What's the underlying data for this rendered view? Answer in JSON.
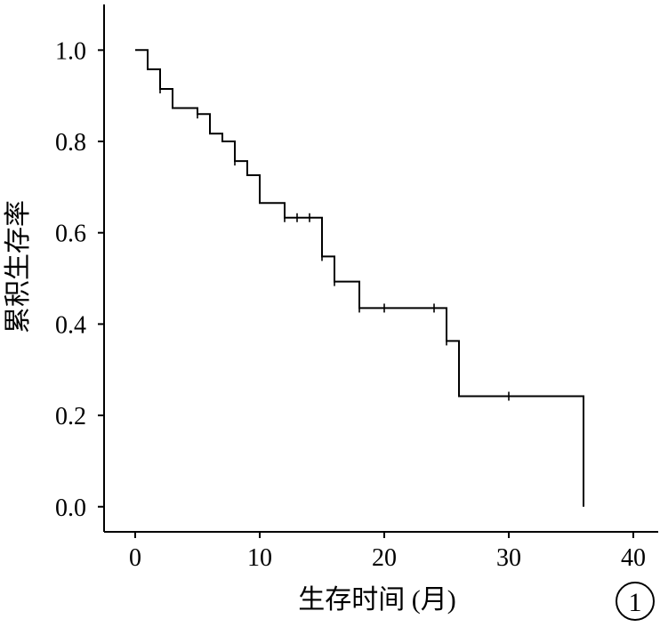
{
  "chart_data": {
    "type": "line",
    "subtype": "kaplan-meier-step",
    "xlabel": "生存时间 (月)",
    "ylabel": "累积生存率",
    "xlim": [
      -2.5,
      42
    ],
    "ylim": [
      -0.055,
      1.1
    ],
    "x_ticks": [
      0,
      10,
      20,
      30,
      40
    ],
    "x_tick_labels": [
      "0",
      "10",
      "20",
      "30",
      "40"
    ],
    "y_ticks": [
      0.0,
      0.2,
      0.4,
      0.6,
      0.8,
      1.0
    ],
    "y_tick_labels": [
      "0.0",
      "0.2",
      "0.4",
      "0.6",
      "0.8",
      "1.0"
    ],
    "grid": false,
    "panel_label": "1",
    "series": [
      {
        "step_points": [
          [
            0,
            1.0
          ],
          [
            1,
            1.0
          ],
          [
            1,
            0.958
          ],
          [
            2,
            0.958
          ],
          [
            2,
            0.915
          ],
          [
            3,
            0.915
          ],
          [
            3,
            0.873
          ],
          [
            5,
            0.873
          ],
          [
            5,
            0.86
          ],
          [
            6,
            0.86
          ],
          [
            6,
            0.817
          ],
          [
            7,
            0.817
          ],
          [
            7,
            0.8
          ],
          [
            8,
            0.8
          ],
          [
            8,
            0.757
          ],
          [
            9,
            0.757
          ],
          [
            9,
            0.726
          ],
          [
            10,
            0.726
          ],
          [
            10,
            0.665
          ],
          [
            12,
            0.665
          ],
          [
            12,
            0.633
          ],
          [
            15,
            0.633
          ],
          [
            15,
            0.548
          ],
          [
            16,
            0.548
          ],
          [
            16,
            0.493
          ],
          [
            18,
            0.493
          ],
          [
            18,
            0.435
          ],
          [
            25,
            0.435
          ],
          [
            25,
            0.363
          ],
          [
            26,
            0.363
          ],
          [
            26,
            0.242
          ],
          [
            36,
            0.242
          ],
          [
            36,
            0.0
          ]
        ],
        "censored": [
          [
            2,
            0.915
          ],
          [
            5,
            0.86
          ],
          [
            8,
            0.757
          ],
          [
            12,
            0.633
          ],
          [
            13,
            0.633
          ],
          [
            14,
            0.633
          ],
          [
            15,
            0.548
          ],
          [
            16,
            0.493
          ],
          [
            18,
            0.435
          ],
          [
            20,
            0.435
          ],
          [
            24,
            0.435
          ],
          [
            25,
            0.363
          ],
          [
            30,
            0.242
          ]
        ]
      }
    ]
  }
}
